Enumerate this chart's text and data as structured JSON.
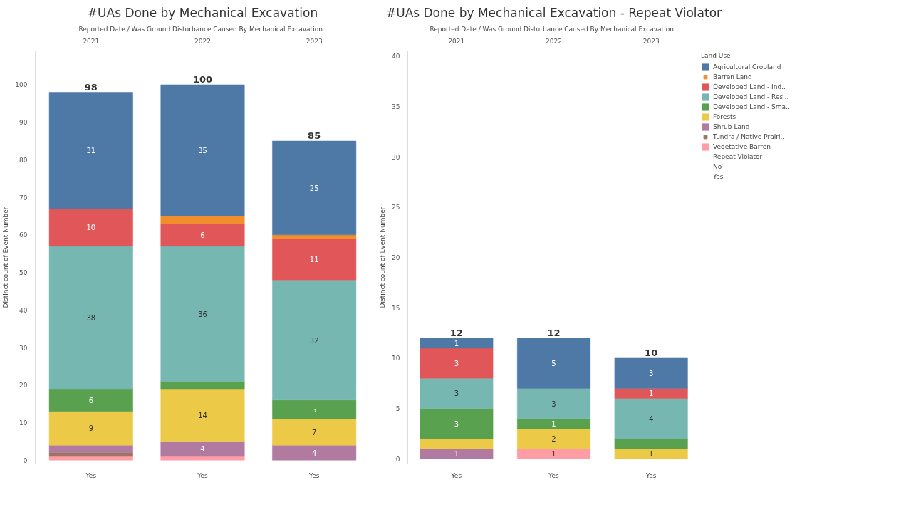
{
  "chart_data": [
    {
      "type": "bar",
      "stacked": true,
      "title": "#UAs Done by Mechanical Excavation",
      "xlabel": "Reported Date  /  Was Ground Disturbance Caused By Mechanical Excavation",
      "ylabel": "Distinct count of Event Number",
      "categories": [
        "2021",
        "2022",
        "2023"
      ],
      "ylim": [
        -1,
        109
      ],
      "yticks": [
        0,
        10,
        20,
        30,
        40,
        50,
        60,
        70,
        80,
        90,
        100
      ],
      "totals": [
        "98",
        "100",
        "85"
      ],
      "annotations": [
        "Yes",
        "Yes",
        "Yes"
      ],
      "series": [
        {
          "color": "#ff9da7",
          "values": [
            1,
            1,
            null
          ],
          "value_labels": [
            null,
            null,
            null
          ]
        },
        {
          "color": "#9c755f",
          "values": [
            1,
            null,
            null
          ],
          "value_labels": [
            null,
            null,
            null
          ]
        },
        {
          "color": "#b07aa1",
          "values": [
            2,
            4,
            4
          ],
          "value_labels": [
            null,
            "4",
            "4"
          ]
        },
        {
          "color": "#edc948",
          "values": [
            9,
            14,
            7
          ],
          "value_labels": [
            "9",
            "14",
            "7"
          ]
        },
        {
          "color": "#59a14f",
          "values": [
            6,
            2,
            5
          ],
          "value_labels": [
            "6",
            null,
            "5"
          ]
        },
        {
          "color": "#76b7b2",
          "values": [
            38,
            36,
            32
          ],
          "value_labels": [
            "38",
            "36",
            "32"
          ]
        },
        {
          "color": "#e15759",
          "values": [
            10,
            6,
            11
          ],
          "value_labels": [
            "10",
            "6",
            "11"
          ]
        },
        {
          "color": "#f28e2b",
          "values": [
            null,
            2,
            1
          ],
          "value_labels": [
            null,
            null,
            null
          ]
        },
        {
          "color": "#4e79a7",
          "values": [
            31,
            35,
            25
          ],
          "value_labels": [
            "31",
            "35",
            "25"
          ]
        }
      ]
    },
    {
      "type": "bar",
      "stacked": true,
      "title": "#UAs Done by Mechanical Excavation - Repeat Violator",
      "xlabel": "Reported Date  /  Was Ground Disturbance Caused By Mechanical Excavation",
      "ylabel": "Distinct count of Event Number",
      "categories": [
        "2021",
        "2022",
        "2023"
      ],
      "ylim": [
        -0.5,
        40.5
      ],
      "yticks": [
        0,
        5,
        10,
        15,
        20,
        25,
        30,
        35,
        40
      ],
      "legend": "right",
      "legend_title": "Land Use",
      "totals": [
        "12",
        "12",
        "10"
      ],
      "annotations": [
        "Yes",
        "Yes",
        "Yes",
        "Repeat Violator",
        "No",
        "Yes"
      ],
      "series": [
        {
          "name": "Vegetative Barren",
          "color": "#ff9da7",
          "values": [
            null,
            1,
            null
          ],
          "value_labels": [
            null,
            "1",
            null
          ]
        },
        {
          "name": "Tundra / Native Prairi..",
          "color": "#9c755f",
          "values": [
            null,
            null,
            null
          ],
          "value_labels": [
            null,
            null,
            null
          ]
        },
        {
          "name": "Shrub Land",
          "color": "#b07aa1",
          "values": [
            1,
            null,
            null
          ],
          "value_labels": [
            "1",
            null,
            null
          ]
        },
        {
          "name": "Forests",
          "color": "#edc948",
          "values": [
            1,
            2,
            1
          ],
          "value_labels": [
            null,
            "2",
            "1"
          ]
        },
        {
          "name": "Developed Land - Sma..",
          "color": "#59a14f",
          "values": [
            3,
            1,
            1
          ],
          "value_labels": [
            "3",
            "1",
            null
          ]
        },
        {
          "name": "Developed Land - Resi..",
          "color": "#76b7b2",
          "values": [
            3,
            3,
            4
          ],
          "value_labels": [
            "3",
            "3",
            "4"
          ]
        },
        {
          "name": "Developed Land - Ind..",
          "color": "#e15759",
          "values": [
            3,
            null,
            1
          ],
          "value_labels": [
            "3",
            null,
            "1"
          ]
        },
        {
          "name": "Barren Land",
          "color": "#f28e2b",
          "values": [
            null,
            null,
            null
          ],
          "value_labels": [
            null,
            null,
            null
          ]
        },
        {
          "name": "Agricultural Cropland",
          "color": "#4e79a7",
          "values": [
            1,
            5,
            3
          ],
          "value_labels": [
            "1",
            "5",
            "3"
          ]
        }
      ]
    }
  ]
}
